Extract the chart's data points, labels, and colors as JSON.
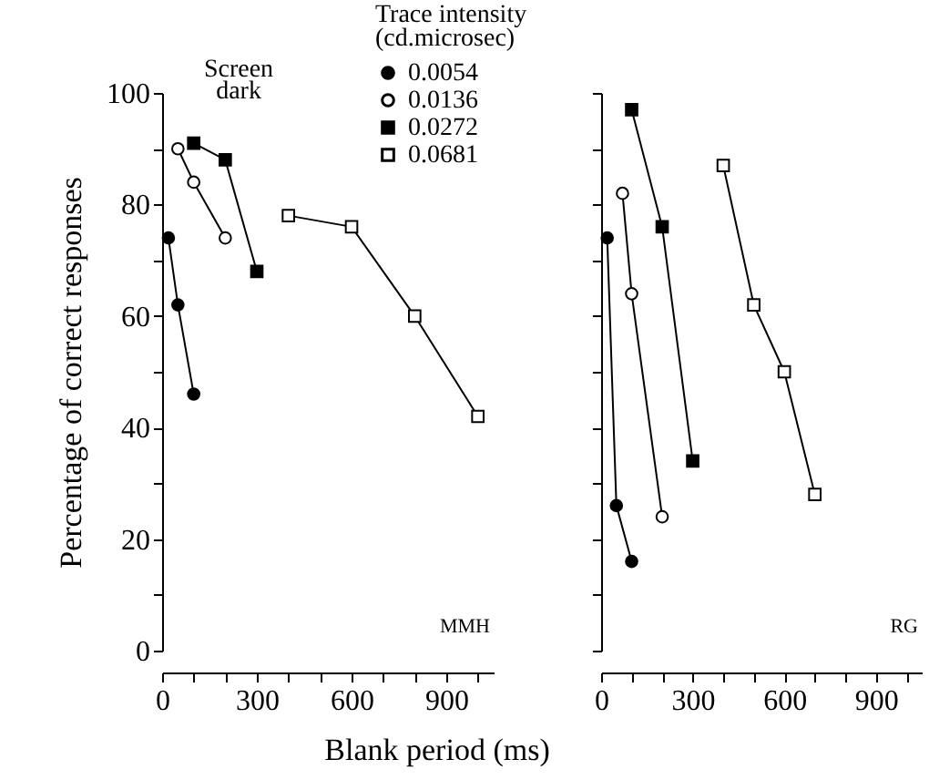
{
  "chart_data": [
    {
      "type": "line",
      "xlabel": "Blank period (ms)",
      "ylabel": "Percentage of correct responses",
      "legend_title": "Trace intensity\n(cd.microsec)",
      "legend": "top right",
      "annotations": [
        "Screen\ndark",
        "MMH"
      ],
      "xlim": [
        0,
        1050
      ],
      "xticks": [
        0,
        {
          "value": 100,
          "label": null
        },
        {
          "value": 200,
          "label": null
        },
        300,
        {
          "value": 400,
          "label": null
        },
        {
          "value": 500,
          "label": null
        },
        600,
        {
          "value": 700,
          "label": null
        },
        {
          "value": 800,
          "label": null
        },
        900,
        {
          "value": 1000,
          "label": null
        }
      ],
      "ylim": [
        0,
        100
      ],
      "yticks": [
        0,
        {
          "value": 10,
          "label": null
        },
        20,
        {
          "value": 30,
          "label": null
        },
        40,
        {
          "value": 50,
          "label": null
        },
        60,
        {
          "value": 70,
          "label": null
        },
        80,
        {
          "value": 90,
          "label": null
        },
        100
      ],
      "series": [
        {
          "name": "0.0054",
          "color": "#000000",
          "marker": "circle",
          "x": [
            20,
            50,
            100
          ],
          "values": [
            74,
            62,
            46
          ]
        },
        {
          "name": "0.0136",
          "color": "#000000",
          "marker": "circle",
          "x": [
            50,
            100,
            200
          ],
          "values": [
            90,
            84,
            74
          ]
        },
        {
          "name": "0.0272",
          "color": "#000000",
          "marker": "square",
          "x": [
            100,
            200,
            300
          ],
          "values": [
            91,
            88,
            68
          ]
        },
        {
          "name": "0.0681",
          "color": "#000000",
          "marker": "square",
          "x": [
            400,
            600,
            800,
            1000
          ],
          "values": [
            78,
            76,
            60,
            42
          ]
        }
      ]
    },
    {
      "type": "line",
      "tick_labels": "x",
      "annotations": [
        "RG"
      ],
      "xlim": [
        0,
        1050
      ],
      "xticks": [
        0,
        {
          "value": 100,
          "label": null
        },
        {
          "value": 200,
          "label": null
        },
        300,
        {
          "value": 400,
          "label": null
        },
        {
          "value": 500,
          "label": null
        },
        600,
        {
          "value": 700,
          "label": null
        },
        {
          "value": 800,
          "label": null
        },
        900,
        {
          "value": 1000,
          "label": null
        }
      ],
      "ylim": [
        0,
        100
      ],
      "yticks": [
        0,
        {
          "value": 10,
          "label": null
        },
        20,
        {
          "value": 30,
          "label": null
        },
        40,
        {
          "value": 50,
          "label": null
        },
        60,
        {
          "value": 70,
          "label": null
        },
        80,
        {
          "value": 90,
          "label": null
        },
        100
      ],
      "series": [
        {
          "name": "0.0054",
          "color": "#000000",
          "marker": "circle",
          "x": [
            20,
            50,
            100
          ],
          "values": [
            74,
            26,
            16
          ]
        },
        {
          "name": "0.0136",
          "color": "#000000",
          "marker": "circle",
          "x": [
            70,
            100,
            200
          ],
          "values": [
            82,
            64,
            24
          ]
        },
        {
          "name": "0.0272",
          "color": "#000000",
          "marker": "square",
          "x": [
            100,
            200,
            300
          ],
          "values": [
            97,
            76,
            34
          ]
        },
        {
          "name": "0.0681",
          "color": "#000000",
          "marker": "square",
          "x": [
            400,
            500,
            600,
            700
          ],
          "values": [
            87,
            62,
            50,
            28
          ]
        }
      ]
    }
  ]
}
